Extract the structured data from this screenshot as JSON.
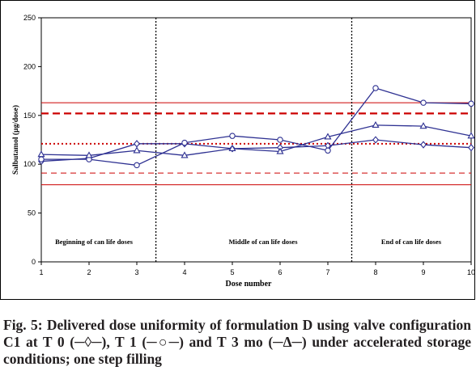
{
  "chart_data": {
    "type": "line",
    "ylabel": "Salbutamol (µg/dose)",
    "xlabel": "Dose number",
    "ylim": [
      0,
      250
    ],
    "yticks": [
      0,
      50,
      100,
      150,
      200,
      250
    ],
    "xlim": [
      1,
      10
    ],
    "xticks": [
      "1",
      "2",
      "3",
      "4",
      "5",
      "6",
      "7",
      "8",
      "9",
      "10"
    ],
    "x": [
      1,
      2,
      3,
      4,
      5,
      6,
      7,
      8,
      9,
      10
    ],
    "grid": false,
    "series": [
      {
        "marker": "diamond",
        "color": "#2e3192",
        "values": [
          103,
          106,
          121,
          121,
          116,
          117,
          119,
          125,
          120,
          117
        ]
      },
      {
        "marker": "circle",
        "color": "#2e3192",
        "values": [
          105,
          105,
          99,
          122,
          129,
          125,
          114,
          178,
          163,
          162
        ]
      },
      {
        "marker": "triangle",
        "color": "#2e3192",
        "values": [
          110,
          109,
          114,
          109,
          116,
          113,
          128,
          140,
          139,
          129
        ]
      }
    ],
    "reference_lines": [
      {
        "y": 163,
        "style": "solid",
        "color": "#cc0000"
      },
      {
        "y": 152,
        "style": "dashed-thick",
        "color": "#cc0000"
      },
      {
        "y": 121,
        "style": "dotted",
        "color": "#cc0000"
      },
      {
        "y": 91,
        "style": "dashed-thin",
        "color": "#cc0000"
      },
      {
        "y": 79,
        "style": "solid",
        "color": "#cc0000"
      }
    ],
    "dividers_after_dose": [
      3.4,
      7.5
    ],
    "region_labels": [
      "Beginning of can life doses",
      "Middle of can life doses",
      "End of can life doses"
    ]
  },
  "caption": "Fig. 5: Delivered dose uniformity of formulation D using valve configuration C1 at T 0 (─◊─), T 1 (─○─) and T 3 mo (─Δ─) under accelerated storage conditions; one step filling"
}
